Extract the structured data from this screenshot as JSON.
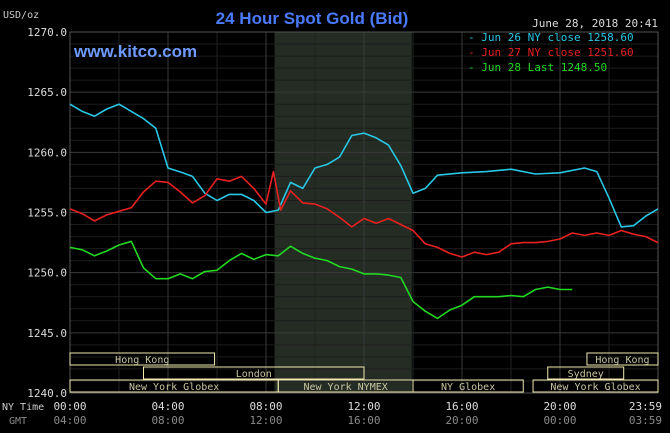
{
  "chart_data": {
    "type": "line",
    "title": "24 Hour Spot Gold (Bid)",
    "ylabel": "USD/oz",
    "brand": "www.kitco.com",
    "timestamp": "June 28, 2018 20:41",
    "ylim": [
      1240,
      1270
    ],
    "y_ticks": [
      "1270.0",
      "1265.0",
      "1260.0",
      "1255.0",
      "1250.0",
      "1245.0",
      "1240.0"
    ],
    "x_range_hours": [
      0,
      24
    ],
    "ny_time_label": "NY Time",
    "gmt_label": "GMT",
    "ny_time_ticks": [
      "00:00",
      "04:00",
      "08:00",
      "12:00",
      "16:00",
      "20:00",
      "23:59"
    ],
    "gmt_ticks": [
      "04:00",
      "08:00",
      "12:00",
      "16:00",
      "20:00",
      "00:00",
      "03:59"
    ],
    "colors": {
      "background": "#000000",
      "grid": "#3a3a3a",
      "title": "#4a7bff",
      "brand": "#6f9bff",
      "session_band": "#242c24",
      "market_box": "#f0e8b0",
      "market_text": "#c9c5a0"
    },
    "session_band_hours": [
      8.35,
      13.95
    ],
    "markets": [
      {
        "name": "Hong Kong",
        "start": 0,
        "end": 5.9,
        "row": 1
      },
      {
        "name": "London",
        "start": 3.0,
        "end": 12.0,
        "row": 2
      },
      {
        "name": "New York Globex",
        "start": 0,
        "end": 8.5,
        "row": 3
      },
      {
        "name": "New York NYMEX",
        "start": 8.5,
        "end": 14.0,
        "row": 3
      },
      {
        "name": "NY Globex",
        "start": 14.0,
        "end": 18.5,
        "row": 3
      },
      {
        "name": "Sydney",
        "start": 19.5,
        "end": 22.6,
        "row": 2
      },
      {
        "name": "Hong Kong",
        "start": 21.1,
        "end": 24,
        "row": 1
      },
      {
        "name": "New York Globex",
        "start": 18.9,
        "end": 24,
        "row": 3
      }
    ],
    "legend_position": "top-right",
    "series": [
      {
        "name": "Jun 26 NY close 1258.60",
        "color": "#29c7e6",
        "x": [
          0,
          0.5,
          1,
          1.5,
          2,
          2.5,
          3,
          3.5,
          4,
          4.3,
          4.6,
          5,
          5.5,
          6,
          6.5,
          7,
          7.5,
          8,
          8.5,
          9,
          9.5,
          10,
          10.5,
          11,
          11.5,
          12,
          12.5,
          13,
          13.5,
          14,
          14.5,
          15,
          16,
          17,
          18,
          19,
          20,
          21,
          21.5,
          22,
          22.5,
          23,
          23.5,
          24
        ],
        "y": [
          1264.0,
          1263.4,
          1263.0,
          1263.6,
          1264.0,
          1263.4,
          1262.8,
          1262.0,
          1258.7,
          1258.5,
          1258.3,
          1258.0,
          1256.6,
          1256.0,
          1256.5,
          1256.5,
          1256.0,
          1255.0,
          1255.2,
          1257.5,
          1257.0,
          1258.7,
          1259.0,
          1259.6,
          1261.4,
          1261.6,
          1261.2,
          1260.6,
          1258.9,
          1256.6,
          1257.0,
          1258.1,
          1258.3,
          1258.4,
          1258.6,
          1258.2,
          1258.3,
          1258.7,
          1258.4,
          1256.2,
          1253.8,
          1253.9,
          1254.7,
          1255.3
        ]
      },
      {
        "name": "Jun 27 NY close 1251.60",
        "color": "#e82020",
        "x": [
          0,
          0.5,
          1,
          1.5,
          2,
          2.5,
          3,
          3.5,
          4,
          4.5,
          5,
          5.5,
          6,
          6.5,
          7,
          7.5,
          8,
          8.3,
          8.6,
          9,
          9.5,
          10,
          10.5,
          11,
          11.5,
          12,
          12.5,
          13,
          13.5,
          14,
          14.5,
          15,
          15.5,
          16,
          16.5,
          17,
          17.5,
          18,
          18.5,
          19,
          19.5,
          20,
          20.5,
          21,
          21.5,
          22,
          22.5,
          23,
          23.5,
          24
        ],
        "y": [
          1255.3,
          1254.9,
          1254.3,
          1254.8,
          1255.1,
          1255.4,
          1256.7,
          1257.6,
          1257.5,
          1256.7,
          1255.8,
          1256.4,
          1257.8,
          1257.6,
          1258.0,
          1257.0,
          1255.7,
          1258.4,
          1255.2,
          1256.8,
          1255.8,
          1255.7,
          1255.3,
          1254.6,
          1253.8,
          1254.5,
          1254.1,
          1254.5,
          1254.0,
          1253.5,
          1252.4,
          1252.1,
          1251.6,
          1251.3,
          1251.7,
          1251.5,
          1251.7,
          1252.4,
          1252.5,
          1252.5,
          1252.6,
          1252.8,
          1253.3,
          1253.1,
          1253.3,
          1253.1,
          1253.5,
          1253.2,
          1253.0,
          1252.5
        ]
      },
      {
        "name": "Jun 28 Last 1248.50",
        "color": "#22d822",
        "x": [
          0,
          0.5,
          1,
          1.5,
          2,
          2.5,
          3,
          3.5,
          4,
          4.5,
          5,
          5.5,
          6,
          6.5,
          7,
          7.5,
          8,
          8.5,
          9,
          9.5,
          10,
          10.5,
          11,
          11.5,
          12,
          12.5,
          13,
          13.5,
          14,
          14.5,
          15,
          15.5,
          16,
          16.5,
          17,
          17.5,
          18,
          18.5,
          19,
          19.5,
          20,
          20.5
        ],
        "y": [
          1252.1,
          1251.9,
          1251.4,
          1251.8,
          1252.3,
          1252.6,
          1250.4,
          1249.5,
          1249.5,
          1249.9,
          1249.5,
          1250.1,
          1250.2,
          1251.0,
          1251.6,
          1251.1,
          1251.5,
          1251.4,
          1252.2,
          1251.6,
          1251.2,
          1251.0,
          1250.5,
          1250.3,
          1249.9,
          1249.9,
          1249.8,
          1249.6,
          1247.6,
          1246.8,
          1246.2,
          1246.9,
          1247.3,
          1248.0,
          1248.0,
          1248.0,
          1248.1,
          1248.0,
          1248.6,
          1248.8,
          1248.6,
          1248.6
        ]
      }
    ]
  }
}
